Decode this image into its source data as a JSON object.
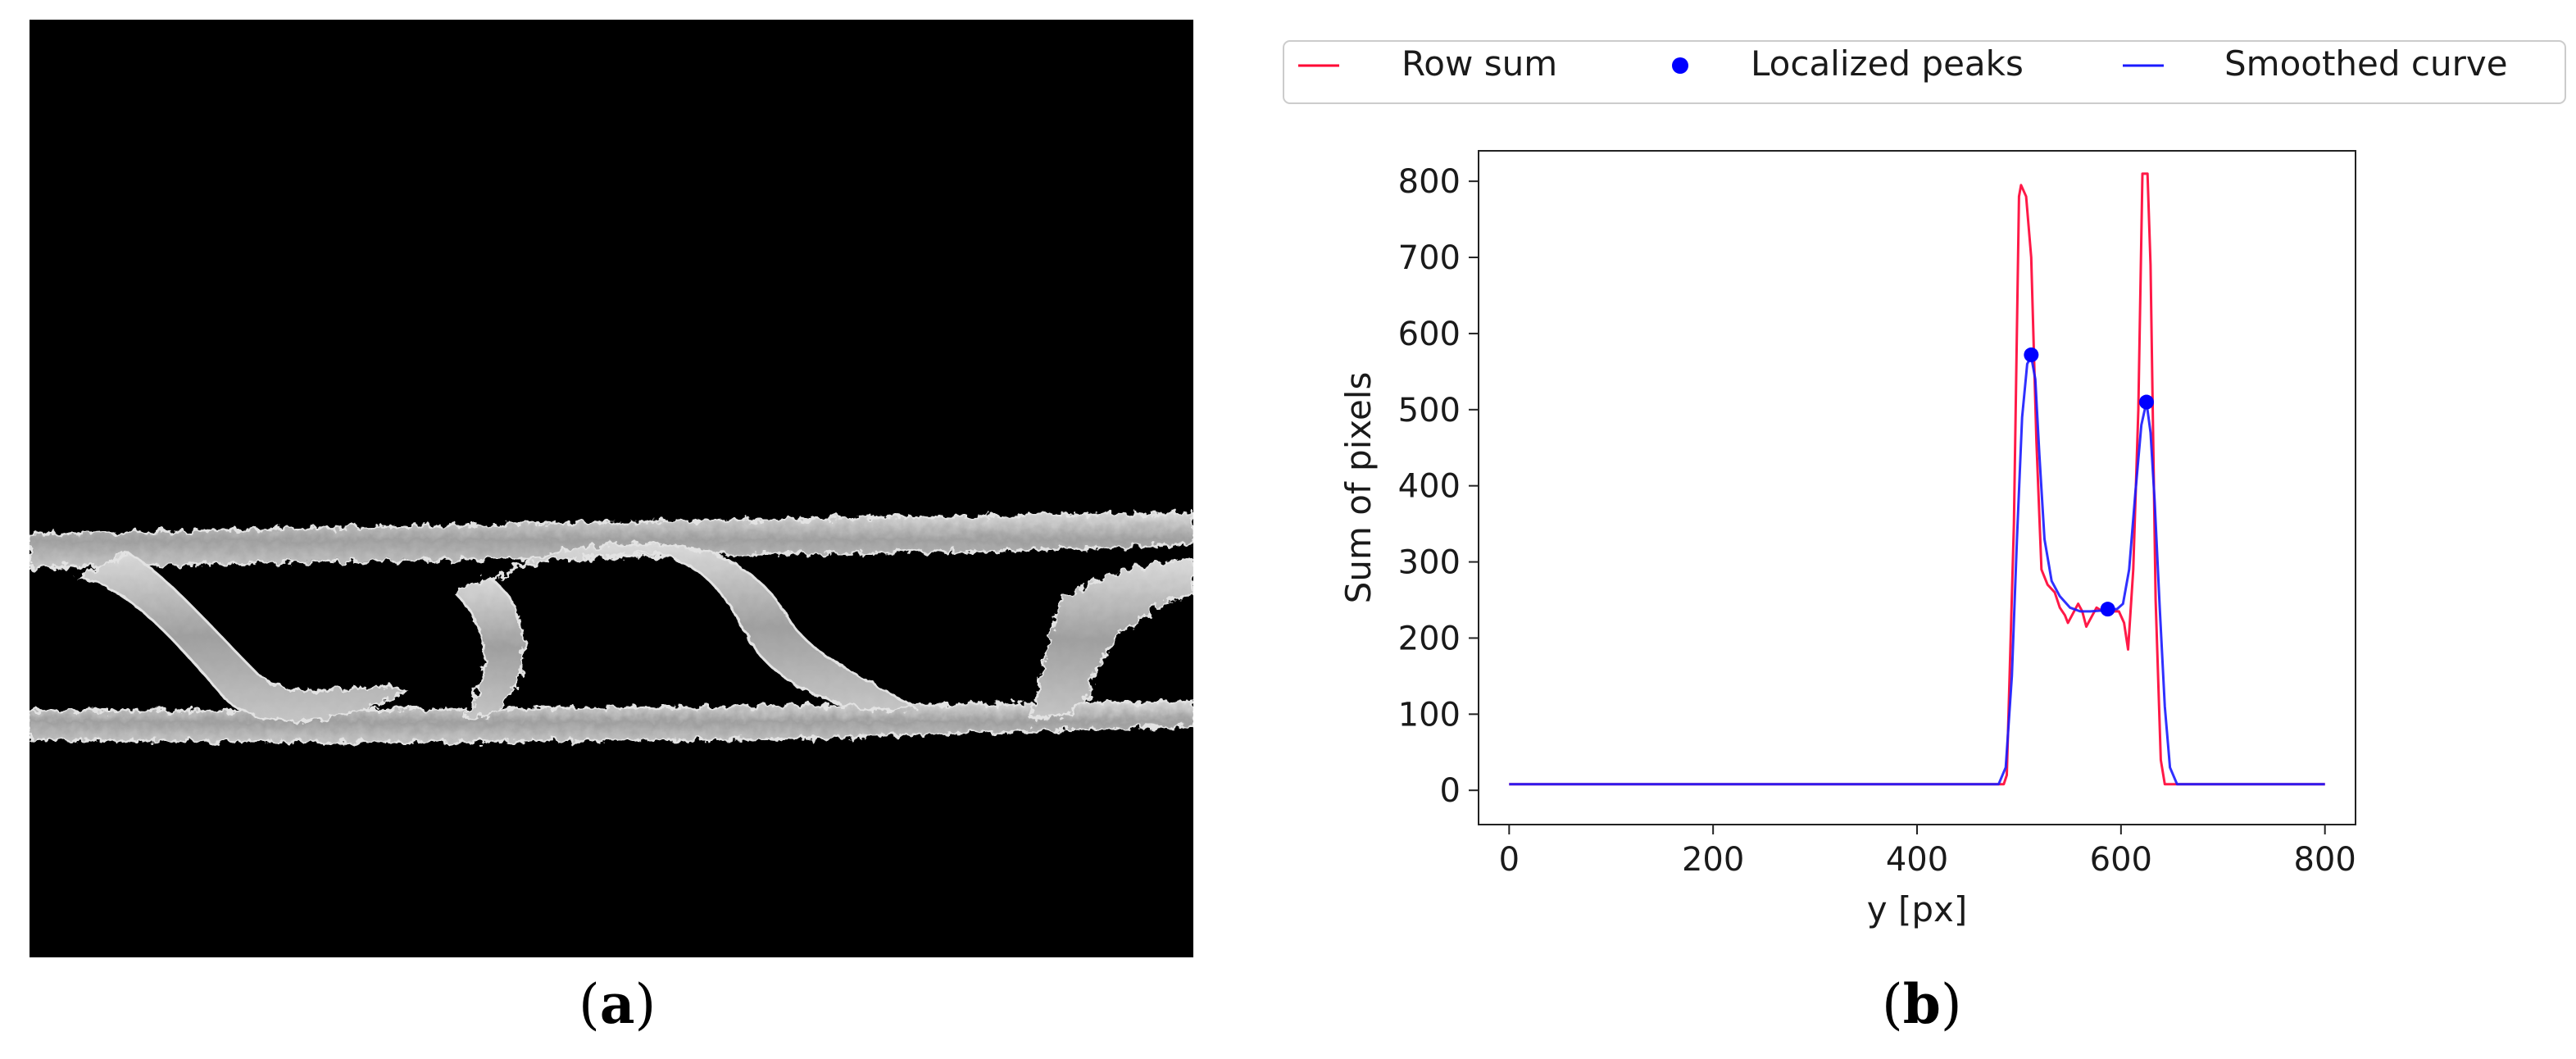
{
  "captions": {
    "a": {
      "open": "(",
      "letter": "a",
      "close": ")"
    },
    "b": {
      "open": "(",
      "letter": "b",
      "close": ")"
    }
  },
  "image_a": {
    "kind": "grayscale SEM micrograph of a corrugated fibrous strip between two straight fibre sheets on black background",
    "colors": {
      "background": "#000000",
      "fibers": "#c8c8c8"
    }
  },
  "chart_data": {
    "type": "line",
    "title": "",
    "xlabel": "y [px]",
    "ylabel": "Sum of pixels",
    "xlim": [
      -30,
      830
    ],
    "ylim": [
      -45,
      840
    ],
    "xticks": [
      0,
      200,
      400,
      600,
      800
    ],
    "yticks": [
      0,
      100,
      200,
      300,
      400,
      500,
      600,
      700,
      800
    ],
    "grid": false,
    "legend": {
      "placement": "top, outside plot, single row",
      "entries": [
        "Row sum",
        "Localized peaks",
        "Smoothed curve"
      ]
    },
    "colors": {
      "row_sum": "#ff0033",
      "peaks": "#0000ff",
      "smoothed": "#1a1aff"
    },
    "series": [
      {
        "name": "Row sum",
        "style": "line",
        "points": [
          [
            0,
            8
          ],
          [
            470,
            8
          ],
          [
            485,
            8
          ],
          [
            488,
            20
          ],
          [
            495,
            350
          ],
          [
            500,
            780
          ],
          [
            502,
            795
          ],
          [
            507,
            780
          ],
          [
            512,
            700
          ],
          [
            517,
            460
          ],
          [
            522,
            290
          ],
          [
            528,
            270
          ],
          [
            535,
            260
          ],
          [
            540,
            240
          ],
          [
            545,
            230
          ],
          [
            548,
            220
          ],
          [
            552,
            230
          ],
          [
            558,
            245
          ],
          [
            562,
            235
          ],
          [
            566,
            215
          ],
          [
            570,
            225
          ],
          [
            576,
            240
          ],
          [
            582,
            235
          ],
          [
            588,
            240
          ],
          [
            592,
            235
          ],
          [
            598,
            235
          ],
          [
            603,
            220
          ],
          [
            607,
            185
          ],
          [
            612,
            290
          ],
          [
            617,
            500
          ],
          [
            621,
            810
          ],
          [
            626,
            810
          ],
          [
            629,
            690
          ],
          [
            634,
            250
          ],
          [
            639,
            40
          ],
          [
            643,
            8
          ],
          [
            800,
            8
          ]
        ]
      },
      {
        "name": "Smoothed curve",
        "style": "line",
        "points": [
          [
            0,
            8
          ],
          [
            480,
            8
          ],
          [
            487,
            30
          ],
          [
            493,
            150
          ],
          [
            498,
            330
          ],
          [
            503,
            490
          ],
          [
            508,
            560
          ],
          [
            512,
            570
          ],
          [
            516,
            540
          ],
          [
            520,
            440
          ],
          [
            525,
            330
          ],
          [
            532,
            275
          ],
          [
            540,
            255
          ],
          [
            550,
            240
          ],
          [
            560,
            235
          ],
          [
            570,
            235
          ],
          [
            580,
            236
          ],
          [
            588,
            238
          ],
          [
            596,
            238
          ],
          [
            602,
            245
          ],
          [
            608,
            290
          ],
          [
            614,
            390
          ],
          [
            620,
            480
          ],
          [
            625,
            510
          ],
          [
            629,
            470
          ],
          [
            633,
            380
          ],
          [
            638,
            240
          ],
          [
            643,
            110
          ],
          [
            648,
            30
          ],
          [
            655,
            8
          ],
          [
            800,
            8
          ]
        ]
      },
      {
        "name": "Localized peaks",
        "style": "markers",
        "points": [
          [
            512,
            572
          ],
          [
            587,
            238
          ],
          [
            625,
            510
          ]
        ]
      }
    ]
  }
}
